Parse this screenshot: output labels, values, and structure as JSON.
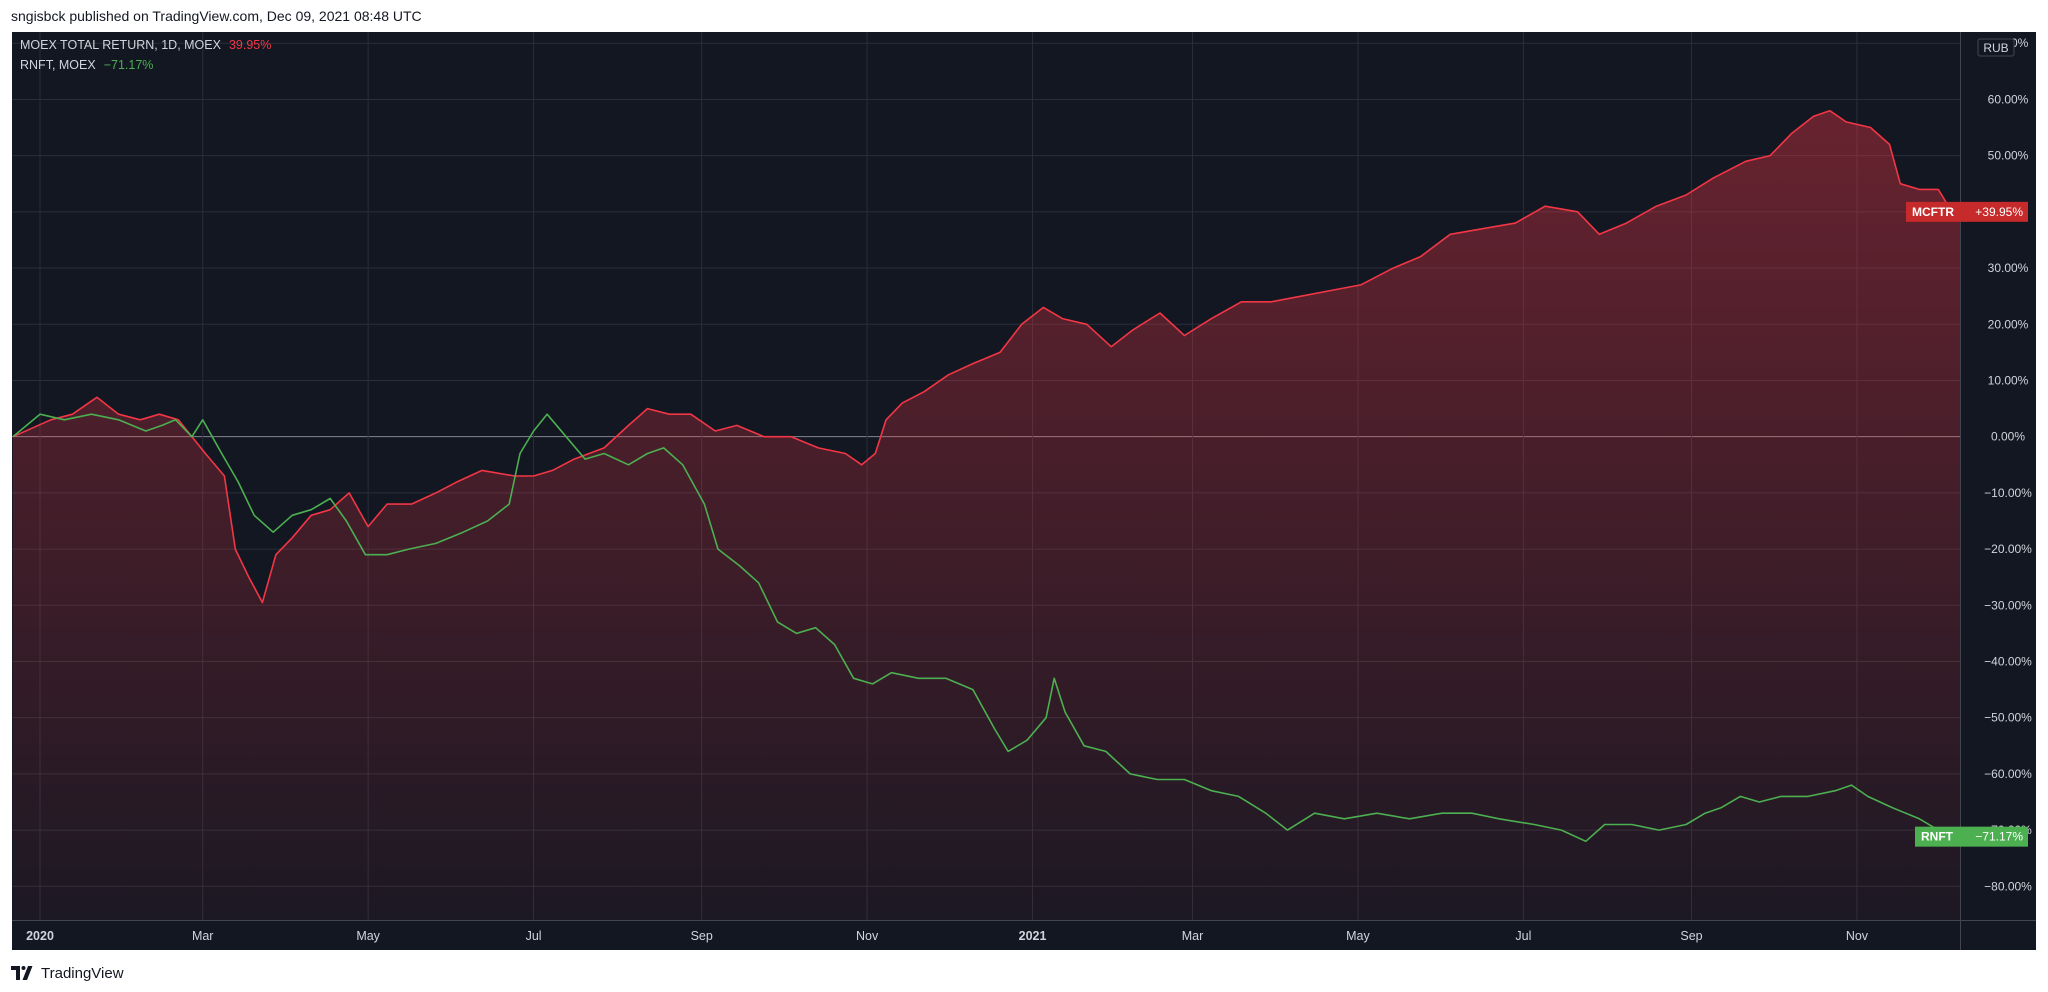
{
  "header": {
    "published_text": "sngisbck published on TradingView.com, Dec 09, 2021 08:48 UTC"
  },
  "footer": {
    "brand": "TradingView"
  },
  "colors": {
    "background": "#131722",
    "grid": "#2a2e39",
    "axis_text": "#d1d4dc",
    "mcftr": "#f23645",
    "mcftr_tag": "#c62a2a",
    "rnft": "#4caf50",
    "zero_line": "#b2b5be"
  },
  "chart_data": {
    "type": "line",
    "currency": "RUB",
    "legend": [
      {
        "symbol": "MOEX TOTAL RETURN, 1D, MOEX",
        "value": "39.95%",
        "color": "#f23645"
      },
      {
        "symbol": "RNFT, MOEX",
        "value": "−71.17%",
        "color": "#4caf50"
      }
    ],
    "price_tags": [
      {
        "label": "MCFTR",
        "value": "+39.95%"
      },
      {
        "label": "RNFT",
        "value": "−71.17%"
      }
    ],
    "ylim": [
      -86,
      72
    ],
    "xlim": [
      "2020-01-01",
      "2021-12-09"
    ],
    "y_ticks": [
      {
        "v": 70,
        "label": "70.00%"
      },
      {
        "v": 60,
        "label": "60.00%"
      },
      {
        "v": 50,
        "label": "50.00%"
      },
      {
        "v": 40,
        "label": "40.00%"
      },
      {
        "v": 30,
        "label": "30.00%"
      },
      {
        "v": 20,
        "label": "20.00%"
      },
      {
        "v": 10,
        "label": "10.00%"
      },
      {
        "v": 0,
        "label": "0.00%"
      },
      {
        "v": -10,
        "label": "−10.00%"
      },
      {
        "v": -20,
        "label": "−20.00%"
      },
      {
        "v": -30,
        "label": "−30.00%"
      },
      {
        "v": -40,
        "label": "−40.00%"
      },
      {
        "v": -50,
        "label": "−50.00%"
      },
      {
        "v": -60,
        "label": "−60.00%"
      },
      {
        "v": -70,
        "label": "−70.00%"
      },
      {
        "v": -80,
        "label": "−80.00%"
      }
    ],
    "x_ticks": [
      {
        "date": "2020-01-01",
        "label": "2020",
        "bold": true
      },
      {
        "date": "2020-03-01",
        "label": "Mar"
      },
      {
        "date": "2020-05-01",
        "label": "May"
      },
      {
        "date": "2020-07-01",
        "label": "Jul"
      },
      {
        "date": "2020-09-01",
        "label": "Sep"
      },
      {
        "date": "2020-11-01",
        "label": "Nov"
      },
      {
        "date": "2021-01-01",
        "label": "2021",
        "bold": true
      },
      {
        "date": "2021-03-01",
        "label": "Mar"
      },
      {
        "date": "2021-05-01",
        "label": "May"
      },
      {
        "date": "2021-07-01",
        "label": "Jul"
      },
      {
        "date": "2021-09-01",
        "label": "Sep"
      },
      {
        "date": "2021-11-01",
        "label": "Nov"
      }
    ],
    "series": [
      {
        "name": "MOEX TOTAL RETURN",
        "color": "#f23645",
        "fill": true,
        "points": [
          [
            "2019-12-22",
            0
          ],
          [
            "2020-01-05",
            3
          ],
          [
            "2020-01-13",
            4
          ],
          [
            "2020-01-22",
            7
          ],
          [
            "2020-01-30",
            4
          ],
          [
            "2020-02-07",
            3
          ],
          [
            "2020-02-14",
            4
          ],
          [
            "2020-02-21",
            3
          ],
          [
            "2020-03-02",
            -3
          ],
          [
            "2020-03-09",
            -7
          ],
          [
            "2020-03-13",
            -20
          ],
          [
            "2020-03-18",
            -25
          ],
          [
            "2020-03-23",
            -29.5
          ],
          [
            "2020-03-28",
            -21
          ],
          [
            "2020-04-03",
            -18
          ],
          [
            "2020-04-10",
            -14
          ],
          [
            "2020-04-17",
            -13
          ],
          [
            "2020-04-24",
            -10
          ],
          [
            "2020-05-01",
            -16
          ],
          [
            "2020-05-08",
            -12
          ],
          [
            "2020-05-17",
            -12
          ],
          [
            "2020-05-26",
            -10
          ],
          [
            "2020-06-03",
            -8
          ],
          [
            "2020-06-12",
            -6
          ],
          [
            "2020-06-24",
            -7
          ],
          [
            "2020-07-01",
            -7
          ],
          [
            "2020-07-08",
            -6
          ],
          [
            "2020-07-16",
            -4
          ],
          [
            "2020-07-27",
            -2
          ],
          [
            "2020-08-05",
            2
          ],
          [
            "2020-08-12",
            5
          ],
          [
            "2020-08-20",
            4
          ],
          [
            "2020-08-28",
            4
          ],
          [
            "2020-09-06",
            1
          ],
          [
            "2020-09-14",
            2
          ],
          [
            "2020-09-24",
            0
          ],
          [
            "2020-10-04",
            0
          ],
          [
            "2020-10-14",
            -2
          ],
          [
            "2020-10-24",
            -3
          ],
          [
            "2020-10-30",
            -5
          ],
          [
            "2020-11-04",
            -3
          ],
          [
            "2020-11-08",
            3
          ],
          [
            "2020-11-14",
            6
          ],
          [
            "2020-11-22",
            8
          ],
          [
            "2020-12-01",
            11
          ],
          [
            "2020-12-10",
            13
          ],
          [
            "2020-12-20",
            15
          ],
          [
            "2020-12-28",
            20
          ],
          [
            "2021-01-05",
            23
          ],
          [
            "2021-01-12",
            21
          ],
          [
            "2021-01-21",
            20
          ],
          [
            "2021-01-30",
            16
          ],
          [
            "2021-02-07",
            19
          ],
          [
            "2021-02-17",
            22
          ],
          [
            "2021-02-26",
            18
          ],
          [
            "2021-03-08",
            21
          ],
          [
            "2021-03-19",
            24
          ],
          [
            "2021-03-30",
            24
          ],
          [
            "2021-04-10",
            25
          ],
          [
            "2021-04-21",
            26
          ],
          [
            "2021-05-02",
            27
          ],
          [
            "2021-05-14",
            30
          ],
          [
            "2021-05-24",
            32
          ],
          [
            "2021-06-04",
            36
          ],
          [
            "2021-06-16",
            37
          ],
          [
            "2021-06-28",
            38
          ],
          [
            "2021-07-09",
            41
          ],
          [
            "2021-07-21",
            40
          ],
          [
            "2021-07-29",
            36
          ],
          [
            "2021-08-08",
            38
          ],
          [
            "2021-08-19",
            41
          ],
          [
            "2021-08-30",
            43
          ],
          [
            "2021-09-09",
            46
          ],
          [
            "2021-09-21",
            49
          ],
          [
            "2021-09-30",
            50
          ],
          [
            "2021-10-08",
            54
          ],
          [
            "2021-10-16",
            57
          ],
          [
            "2021-10-22",
            58
          ],
          [
            "2021-10-28",
            56
          ],
          [
            "2021-11-06",
            55
          ],
          [
            "2021-11-13",
            52
          ],
          [
            "2021-11-17",
            45
          ],
          [
            "2021-11-24",
            44
          ],
          [
            "2021-12-01",
            44
          ],
          [
            "2021-12-06",
            40
          ],
          [
            "2021-12-09",
            40
          ]
        ]
      },
      {
        "name": "RNFT",
        "color": "#4caf50",
        "fill": false,
        "points": [
          [
            "2019-12-22",
            0
          ],
          [
            "2020-01-01",
            4
          ],
          [
            "2020-01-10",
            3
          ],
          [
            "2020-01-20",
            4
          ],
          [
            "2020-01-30",
            3
          ],
          [
            "2020-02-09",
            1
          ],
          [
            "2020-02-15",
            2
          ],
          [
            "2020-02-20",
            3
          ],
          [
            "2020-02-26",
            0
          ],
          [
            "2020-03-01",
            3
          ],
          [
            "2020-03-08",
            -3
          ],
          [
            "2020-03-14",
            -8
          ],
          [
            "2020-03-20",
            -14
          ],
          [
            "2020-03-27",
            -17
          ],
          [
            "2020-04-03",
            -14
          ],
          [
            "2020-04-10",
            -13
          ],
          [
            "2020-04-17",
            -11
          ],
          [
            "2020-04-23",
            -15
          ],
          [
            "2020-04-30",
            -21
          ],
          [
            "2020-05-08",
            -21
          ],
          [
            "2020-05-16",
            -20
          ],
          [
            "2020-05-26",
            -19
          ],
          [
            "2020-06-05",
            -17
          ],
          [
            "2020-06-14",
            -15
          ],
          [
            "2020-06-22",
            -12
          ],
          [
            "2020-06-26",
            -3
          ],
          [
            "2020-07-01",
            1
          ],
          [
            "2020-07-06",
            4
          ],
          [
            "2020-07-13",
            0
          ],
          [
            "2020-07-20",
            -4
          ],
          [
            "2020-07-27",
            -3
          ],
          [
            "2020-08-05",
            -5
          ],
          [
            "2020-08-12",
            -3
          ],
          [
            "2020-08-18",
            -2
          ],
          [
            "2020-08-25",
            -5
          ],
          [
            "2020-09-02",
            -12
          ],
          [
            "2020-09-07",
            -20
          ],
          [
            "2020-09-15",
            -23
          ],
          [
            "2020-09-22",
            -26
          ],
          [
            "2020-09-29",
            -33
          ],
          [
            "2020-10-06",
            -35
          ],
          [
            "2020-10-13",
            -34
          ],
          [
            "2020-10-20",
            -37
          ],
          [
            "2020-10-27",
            -43
          ],
          [
            "2020-11-03",
            -44
          ],
          [
            "2020-11-10",
            -42
          ],
          [
            "2020-11-20",
            -43
          ],
          [
            "2020-11-30",
            -43
          ],
          [
            "2020-12-10",
            -45
          ],
          [
            "2020-12-18",
            -52
          ],
          [
            "2020-12-23",
            -56
          ],
          [
            "2020-12-30",
            -54
          ],
          [
            "2021-01-06",
            -50
          ],
          [
            "2021-01-09",
            -43
          ],
          [
            "2021-01-13",
            -49
          ],
          [
            "2021-01-20",
            -55
          ],
          [
            "2021-01-28",
            -56
          ],
          [
            "2021-02-06",
            -60
          ],
          [
            "2021-02-16",
            -61
          ],
          [
            "2021-02-26",
            -61
          ],
          [
            "2021-03-08",
            -63
          ],
          [
            "2021-03-18",
            -64
          ],
          [
            "2021-03-28",
            -67
          ],
          [
            "2021-04-05",
            -70
          ],
          [
            "2021-04-15",
            -67
          ],
          [
            "2021-04-26",
            -68
          ],
          [
            "2021-05-08",
            -67
          ],
          [
            "2021-05-20",
            -68
          ],
          [
            "2021-06-01",
            -67
          ],
          [
            "2021-06-12",
            -67
          ],
          [
            "2021-06-22",
            -68
          ],
          [
            "2021-07-05",
            -69
          ],
          [
            "2021-07-15",
            -70
          ],
          [
            "2021-07-24",
            -72
          ],
          [
            "2021-07-31",
            -69
          ],
          [
            "2021-08-10",
            -69
          ],
          [
            "2021-08-20",
            -70
          ],
          [
            "2021-08-30",
            -69
          ],
          [
            "2021-09-06",
            -67
          ],
          [
            "2021-09-12",
            -66
          ],
          [
            "2021-09-19",
            -64
          ],
          [
            "2021-09-26",
            -65
          ],
          [
            "2021-10-04",
            -64
          ],
          [
            "2021-10-14",
            -64
          ],
          [
            "2021-10-24",
            -63
          ],
          [
            "2021-10-30",
            -62
          ],
          [
            "2021-11-05",
            -64
          ],
          [
            "2021-11-14",
            -66
          ],
          [
            "2021-11-24",
            -68
          ],
          [
            "2021-12-01",
            -70
          ],
          [
            "2021-12-09",
            -71.17
          ]
        ]
      }
    ]
  }
}
